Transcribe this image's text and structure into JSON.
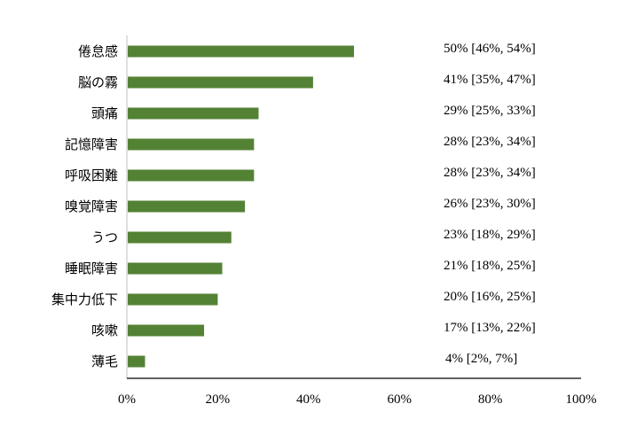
{
  "chart_data": {
    "type": "bar",
    "orientation": "horizontal",
    "categories": [
      "倦怠感",
      "脳の霧",
      "頭痛",
      "記憶障害",
      "呼吸困難",
      "嗅覚障害",
      "うつ",
      "睡眠障害",
      "集中力低下",
      "咳嗽",
      "薄毛"
    ],
    "values": [
      50,
      41,
      29,
      28,
      28,
      26,
      23,
      21,
      20,
      17,
      4
    ],
    "data_labels": [
      "50% [46%, 54%]",
      "41% [35%, 47%]",
      "29% [25%, 33%]",
      "28% [23%, 34%]",
      "28% [23%, 34%]",
      "26% [23%, 30%]",
      "23% [18%, 29%]",
      "21% [18%, 25%]",
      "20% [16%, 25%]",
      "17% [13%, 22%]",
      "4% [2%, 7%]"
    ],
    "xlim": [
      0,
      100
    ],
    "xticks": [
      "0%",
      "20%",
      "40%",
      "60%",
      "80%",
      "100%"
    ],
    "grid": false,
    "bar_color": "#548235",
    "title": "",
    "xlabel": "",
    "ylabel": ""
  }
}
